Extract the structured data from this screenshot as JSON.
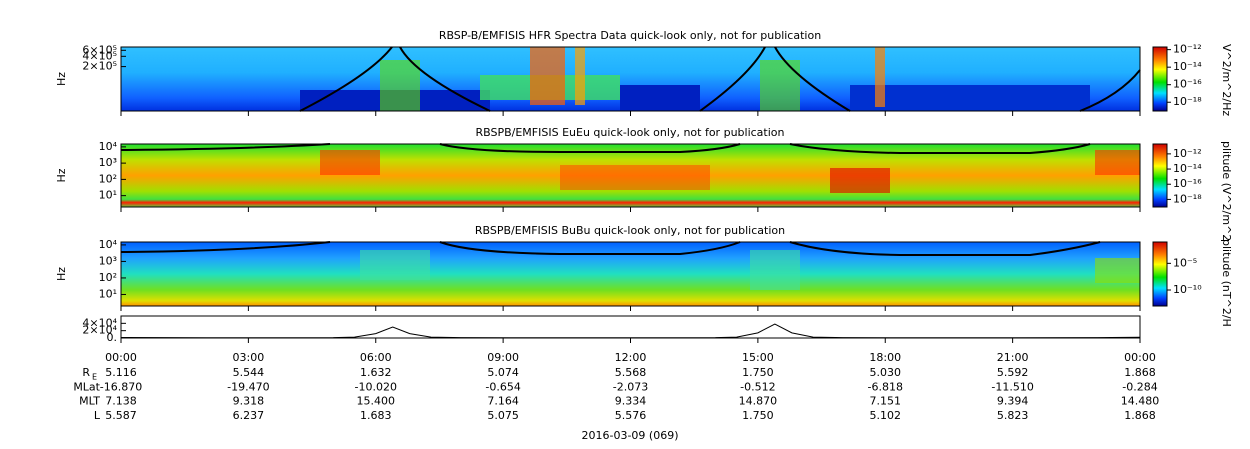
{
  "chart_data": [
    {
      "type": "spectrogram",
      "title": "RBSP-B/EMFISIS  HFR Spectra Data quick-look only, not for publication",
      "y_label": "Hz",
      "log_y": true,
      "ylim": [
        10000,
        750000
      ],
      "yticks": [
        {
          "value": 600000,
          "label": "6×10⁵"
        },
        {
          "value": 400000,
          "label": "4×10⁵"
        },
        {
          "value": 200000,
          "label": "2×10⁵"
        }
      ],
      "colorbar_label": "V^2/m^2/Hz",
      "clim": [
        1e-19,
        2e-12
      ],
      "cticks": [
        {
          "value": 1e-12,
          "label": "10⁻¹²"
        },
        {
          "value": 1e-14,
          "label": "10⁻¹⁴"
        },
        {
          "value": 1e-16,
          "label": "10⁻¹⁶"
        },
        {
          "value": 1e-18,
          "label": "10⁻¹⁸"
        }
      ]
    },
    {
      "type": "spectrogram",
      "title": "RBSPB/EMFISIS  EuEu quick-look only, not for publication",
      "y_label": "Hz",
      "log_y": true,
      "ylim": [
        2,
        15000
      ],
      "yticks": [
        {
          "value": 10000,
          "label": "10⁴"
        },
        {
          "value": 1000,
          "label": "10³"
        },
        {
          "value": 100,
          "label": "10²"
        },
        {
          "value": 10,
          "label": "10¹"
        }
      ],
      "colorbar_label": "plitude (V^2/m^2",
      "clim": [
        1e-19,
        2e-11
      ],
      "cticks": [
        {
          "value": 1e-12,
          "label": "10⁻¹²"
        },
        {
          "value": 1e-14,
          "label": "10⁻¹⁴"
        },
        {
          "value": 1e-16,
          "label": "10⁻¹⁶"
        },
        {
          "value": 1e-18,
          "label": "10⁻¹⁸"
        }
      ]
    },
    {
      "type": "spectrogram",
      "title": "RBSPB/EMFISIS  BuBu quick-look only, not for publication",
      "y_label": "Hz",
      "log_y": true,
      "ylim": [
        2,
        15000
      ],
      "yticks": [
        {
          "value": 10000,
          "label": "10⁴"
        },
        {
          "value": 1000,
          "label": "10³"
        },
        {
          "value": 100,
          "label": "10²"
        },
        {
          "value": 10,
          "label": "10¹"
        }
      ],
      "colorbar_label": "plitude (nT^2/H",
      "clim": [
        1e-13,
        0.1
      ],
      "cticks": [
        {
          "value": 1e-05,
          "label": "10⁻⁵"
        },
        {
          "value": 1e-10,
          "label": "10⁻¹⁰"
        }
      ]
    },
    {
      "type": "line",
      "log_y": false,
      "ylim": [
        0,
        60000
      ],
      "yticks": [
        {
          "value": 40000,
          "label": "4×10⁴"
        },
        {
          "value": 20000,
          "label": "2×10⁴"
        },
        {
          "value": 0,
          "label": "0."
        }
      ],
      "x": [
        0,
        2,
        4,
        5,
        5.5,
        6,
        6.4,
        6.8,
        7.3,
        8,
        10,
        12,
        14,
        14.5,
        15,
        15.4,
        15.8,
        16.3,
        17,
        19,
        21,
        23,
        24
      ],
      "values": [
        1500,
        800,
        700,
        900,
        2500,
        12000,
        30000,
        12000,
        2500,
        1000,
        700,
        700,
        900,
        2500,
        14000,
        38000,
        14000,
        2500,
        1000,
        700,
        700,
        1000,
        2000
      ],
      "color": "#000000"
    }
  ],
  "time_axis": {
    "xlim": [
      0,
      24
    ],
    "xticks": [
      {
        "value": 0,
        "label": "00:00"
      },
      {
        "value": 3,
        "label": "03:00"
      },
      {
        "value": 6,
        "label": "06:00"
      },
      {
        "value": 9,
        "label": "09:00"
      },
      {
        "value": 12,
        "label": "12:00"
      },
      {
        "value": 15,
        "label": "15:00"
      },
      {
        "value": 18,
        "label": "18:00"
      },
      {
        "value": 21,
        "label": "21:00"
      },
      {
        "value": 24,
        "label": "00:00"
      }
    ],
    "date_label": "2016-03-09 (069)"
  },
  "ephemeris": [
    {
      "name": "R",
      "subscript": "E",
      "values": [
        "5.116",
        "5.544",
        "1.632",
        "5.074",
        "5.568",
        "1.750",
        "5.030",
        "5.592",
        "1.868"
      ]
    },
    {
      "name": "MLat",
      "values": [
        "-16.870",
        "-19.470",
        "-10.020",
        "-0.654",
        "-2.073",
        "-0.512",
        "-6.818",
        "-11.510",
        "-0.284"
      ]
    },
    {
      "name": "MLT",
      "values": [
        "7.138",
        "9.318",
        "15.400",
        "7.164",
        "9.334",
        "14.870",
        "7.151",
        "9.394",
        "14.480"
      ]
    },
    {
      "name": "L",
      "values": [
        "5.587",
        "6.237",
        "1.683",
        "5.075",
        "5.576",
        "1.750",
        "5.102",
        "5.823",
        "1.868"
      ]
    }
  ]
}
